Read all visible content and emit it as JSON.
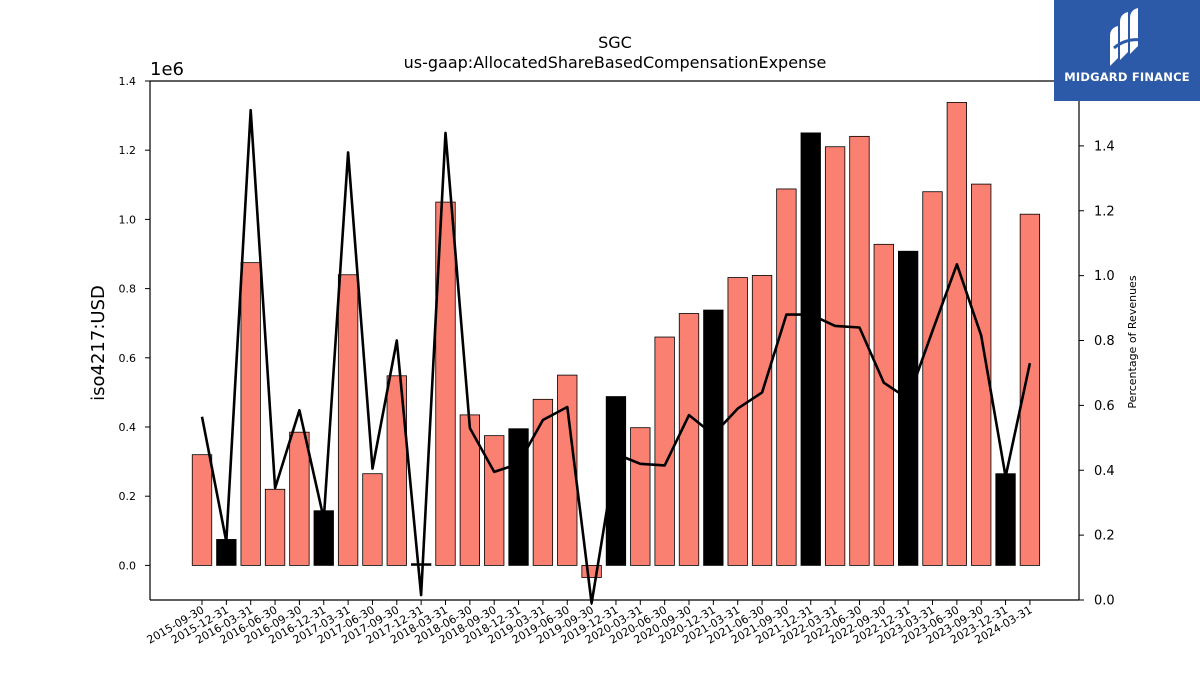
{
  "chart_data": {
    "type": "bar",
    "title": "SGC",
    "subtitle": "us-gaap:AllocatedShareBasedCompensationExpense",
    "ylabel": "iso4217:USD",
    "y_multiplier_label": "1e6",
    "y2label": "Percentage of Revenues",
    "ylim": [
      -100000,
      1400000
    ],
    "y2lim": [
      0.0,
      1.6
    ],
    "y_ticks": [
      "0.0",
      "0.2",
      "0.4",
      "0.6",
      "0.8",
      "1.0",
      "1.2",
      "1.4"
    ],
    "y2_ticks": [
      "0.0",
      "0.2",
      "0.4",
      "0.6",
      "0.8",
      "1.0",
      "1.2",
      "1.4"
    ],
    "categories": [
      "2015-09-30",
      "2015-12-31",
      "2016-03-31",
      "2016-06-30",
      "2016-09-30",
      "2016-12-31",
      "2017-03-31",
      "2017-06-30",
      "2017-09-30",
      "2017-12-31",
      "2018-03-31",
      "2018-06-30",
      "2018-09-30",
      "2018-12-31",
      "2019-03-31",
      "2019-06-30",
      "2019-09-30",
      "2019-12-31",
      "2020-03-31",
      "2020-06-30",
      "2020-09-30",
      "2020-12-31",
      "2021-03-31",
      "2021-06-30",
      "2021-09-30",
      "2021-12-31",
      "2022-03-31",
      "2022-06-30",
      "2022-09-30",
      "2022-12-31",
      "2023-03-31",
      "2023-06-30",
      "2023-09-30",
      "2023-12-31",
      "2024-03-31"
    ],
    "series": [
      {
        "type": "bar",
        "values": [
          320000,
          75000,
          875000,
          220000,
          385000,
          158000,
          840000,
          265000,
          548000,
          5000,
          1050000,
          435000,
          375000,
          395000,
          480000,
          550000,
          -35000,
          488000,
          398000,
          660000,
          728000,
          738000,
          832000,
          838000,
          1088000,
          1250000,
          1210000,
          1240000,
          928000,
          908000,
          1080000,
          1338000,
          1102000,
          265000,
          1015000
        ],
        "highlight": [
          false,
          true,
          false,
          false,
          false,
          true,
          false,
          false,
          false,
          true,
          false,
          false,
          false,
          true,
          false,
          false,
          false,
          true,
          false,
          false,
          false,
          true,
          false,
          false,
          false,
          true,
          false,
          false,
          false,
          true,
          false,
          false,
          false,
          true,
          false
        ]
      },
      {
        "type": "line",
        "axis": "right",
        "values": [
          0.565,
          0.18,
          1.51,
          0.345,
          0.585,
          0.25,
          1.38,
          0.405,
          0.8,
          0.015,
          1.44,
          0.53,
          0.395,
          0.42,
          0.555,
          0.595,
          -0.01,
          0.45,
          0.42,
          0.415,
          0.57,
          0.51,
          0.59,
          0.64,
          0.88,
          0.88,
          0.845,
          0.84,
          0.67,
          0.62,
          0.83,
          1.035,
          0.815,
          0.38,
          0.73
        ]
      }
    ],
    "colors": {
      "bar": "#fa8072",
      "bar_highlight": "#000000",
      "line": "#000000"
    },
    "grid": false
  },
  "logo": {
    "text": "MIDGARD FINANCE"
  }
}
